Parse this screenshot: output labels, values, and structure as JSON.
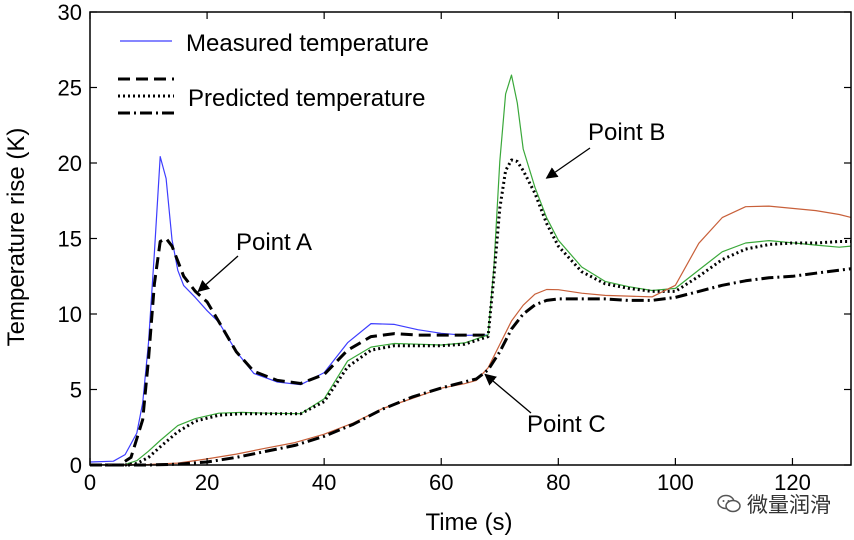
{
  "chart_data": {
    "type": "line",
    "xlabel": "Time (s)",
    "ylabel": "Temperature rise (K)",
    "xlim": [
      0,
      130
    ],
    "ylim": [
      0,
      30
    ],
    "xticks": [
      0,
      20,
      40,
      60,
      80,
      100,
      120
    ],
    "yticks": [
      0,
      5,
      10,
      15,
      20,
      25,
      30
    ],
    "grid": false,
    "legend": {
      "location": "top-left",
      "entries": [
        {
          "label": "Measured temperature",
          "style": "solid"
        },
        {
          "label": "Predicted temperature",
          "styles": [
            "dashed",
            "dotted",
            "dash-dot"
          ]
        }
      ]
    },
    "series": [
      {
        "name": "Point A measured",
        "kind": "measured",
        "color": "#3d3dff",
        "x": [
          0,
          4,
          6,
          8,
          9,
          10,
          11,
          12,
          13,
          14,
          15,
          16,
          18,
          20,
          22,
          25,
          28,
          32,
          36,
          40,
          44,
          48,
          52,
          56,
          60,
          64,
          68
        ],
        "y": [
          0.2,
          0.2,
          0.6,
          2,
          4,
          8,
          14,
          20.4,
          19,
          15,
          13,
          12,
          11.2,
          10.3,
          9.5,
          7.5,
          6,
          5.4,
          5.2,
          6,
          8,
          9.3,
          9.3,
          9,
          8.8,
          8.7,
          8.6
        ]
      },
      {
        "name": "Point A predicted",
        "kind": "predicted",
        "style": "dashed",
        "x": [
          0,
          5,
          7,
          9,
          10,
          11,
          12,
          13,
          14,
          15,
          16,
          18,
          20,
          22,
          25,
          28,
          32,
          36,
          40,
          44,
          48,
          52,
          56,
          60,
          64,
          68
        ],
        "y": [
          0,
          0,
          0.5,
          3,
          7,
          12,
          14.8,
          15,
          14.5,
          13.5,
          12.5,
          11.5,
          10.8,
          9.5,
          7.5,
          6.2,
          5.6,
          5.4,
          6,
          7.6,
          8.5,
          8.7,
          8.6,
          8.6,
          8.6,
          8.6
        ]
      },
      {
        "name": "Point B measured",
        "kind": "measured",
        "color": "#3aa83a",
        "x": [
          0,
          6,
          8,
          10,
          12,
          15,
          18,
          22,
          26,
          30,
          36,
          40,
          44,
          48,
          52,
          56,
          60,
          64,
          68,
          69,
          70,
          71,
          72,
          73,
          74,
          76,
          78,
          80,
          84,
          88,
          92,
          96,
          100,
          104,
          108,
          112,
          116,
          120,
          124,
          128,
          130
        ],
        "y": [
          0,
          0,
          0.2,
          0.8,
          1.5,
          2.5,
          3,
          3.4,
          3.5,
          3.5,
          3.5,
          4.5,
          7,
          7.9,
          8.1,
          8,
          7.9,
          8,
          8.5,
          13,
          20,
          24.5,
          25.8,
          24,
          21,
          18.5,
          16.5,
          15,
          13.2,
          12.2,
          11.8,
          11.5,
          11.6,
          12.8,
          14,
          14.6,
          14.8,
          14.7,
          14.6,
          14.5,
          14.5
        ]
      },
      {
        "name": "Point B predicted",
        "kind": "predicted",
        "style": "dotted",
        "x": [
          0,
          6,
          8,
          10,
          12,
          15,
          18,
          22,
          26,
          30,
          36,
          40,
          44,
          48,
          52,
          56,
          60,
          64,
          68,
          69,
          70,
          71,
          72,
          73,
          74,
          76,
          78,
          80,
          84,
          88,
          92,
          96,
          100,
          104,
          108,
          112,
          116,
          120,
          124,
          128,
          130
        ],
        "y": [
          0,
          0,
          0.1,
          0.5,
          1.2,
          2.2,
          2.9,
          3.3,
          3.4,
          3.4,
          3.4,
          4.2,
          6.5,
          7.6,
          7.9,
          7.9,
          7.9,
          8,
          8.5,
          12.5,
          17,
          19.5,
          20.2,
          20.1,
          19.5,
          18,
          16,
          14.5,
          12.8,
          12,
          11.7,
          11.5,
          11.5,
          12.5,
          13.6,
          14.3,
          14.6,
          14.7,
          14.7,
          14.8,
          14.8
        ]
      },
      {
        "name": "Point C measured",
        "kind": "measured",
        "color": "#c8603a",
        "x": [
          0,
          10,
          15,
          20,
          25,
          30,
          35,
          40,
          45,
          50,
          55,
          60,
          64,
          66,
          68,
          70,
          72,
          74,
          76,
          78,
          80,
          84,
          88,
          92,
          96,
          100,
          104,
          108,
          112,
          116,
          120,
          124,
          128,
          130
        ],
        "y": [
          0,
          0,
          0.05,
          0.3,
          0.6,
          1,
          1.4,
          2,
          2.8,
          3.8,
          4.5,
          5.2,
          5.5,
          5.7,
          6.5,
          8,
          9.5,
          10.5,
          11.2,
          11.5,
          11.5,
          11.3,
          11.2,
          11.2,
          11.2,
          12,
          14.8,
          16.5,
          17.2,
          17.2,
          17,
          16.8,
          16.5,
          16.4
        ]
      },
      {
        "name": "Point C predicted",
        "kind": "predicted",
        "style": "dash-dot",
        "x": [
          0,
          10,
          15,
          20,
          25,
          30,
          35,
          40,
          45,
          50,
          55,
          60,
          64,
          66,
          68,
          70,
          72,
          74,
          76,
          78,
          80,
          84,
          88,
          92,
          96,
          100,
          104,
          108,
          112,
          116,
          120,
          124,
          128,
          130
        ],
        "y": [
          0,
          0,
          0.05,
          0.2,
          0.5,
          0.9,
          1.3,
          1.9,
          2.7,
          3.7,
          4.5,
          5.1,
          5.5,
          5.7,
          6.3,
          7.5,
          9,
          10,
          10.6,
          10.9,
          11,
          11,
          11,
          10.9,
          10.9,
          11.1,
          11.5,
          11.9,
          12.2,
          12.4,
          12.5,
          12.7,
          12.9,
          13
        ]
      }
    ],
    "annotations": [
      {
        "text": "Point A",
        "points_to": [
          18.5,
          11.5
        ]
      },
      {
        "text": "Point B",
        "points_to": [
          78,
          19
        ]
      },
      {
        "text": "Point C",
        "points_to": [
          67.5,
          6
        ]
      }
    ]
  },
  "watermark": {
    "text": "微量润滑",
    "icon": "wechat-icon"
  }
}
